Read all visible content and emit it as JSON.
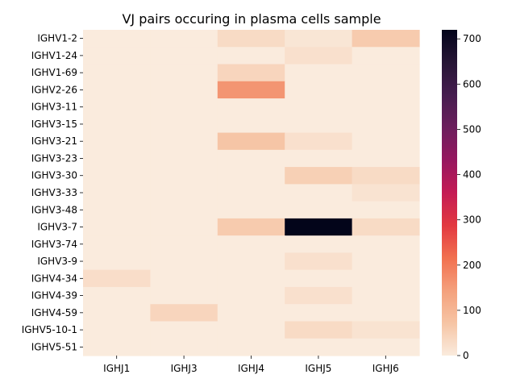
{
  "chart_data": {
    "type": "heatmap",
    "title": "VJ pairs occuring in plasma cells sample",
    "xlabel": "",
    "ylabel": "",
    "x_categories": [
      "IGHJ1",
      "IGHJ3",
      "IGHJ4",
      "IGHJ5",
      "IGHJ6"
    ],
    "y_categories": [
      "IGHV1-2",
      "IGHV1-24",
      "IGHV1-69",
      "IGHV2-26",
      "IGHV3-11",
      "IGHV3-15",
      "IGHV3-21",
      "IGHV3-23",
      "IGHV3-30",
      "IGHV3-33",
      "IGHV3-48",
      "IGHV3-7",
      "IGHV3-74",
      "IGHV3-9",
      "IGHV4-34",
      "IGHV4-39",
      "IGHV4-59",
      "IGHV5-10-1",
      "IGHV5-51"
    ],
    "values": [
      [
        0,
        0,
        30,
        10,
        60
      ],
      [
        0,
        0,
        0,
        20,
        0
      ],
      [
        0,
        0,
        40,
        0,
        0
      ],
      [
        0,
        0,
        160,
        0,
        0
      ],
      [
        0,
        0,
        0,
        0,
        0
      ],
      [
        0,
        0,
        0,
        0,
        0
      ],
      [
        0,
        0,
        70,
        20,
        0
      ],
      [
        0,
        0,
        0,
        0,
        0
      ],
      [
        0,
        0,
        0,
        50,
        30
      ],
      [
        0,
        0,
        0,
        0,
        15
      ],
      [
        0,
        0,
        0,
        0,
        0
      ],
      [
        0,
        0,
        60,
        720,
        30
      ],
      [
        0,
        0,
        0,
        0,
        0
      ],
      [
        0,
        0,
        0,
        20,
        0
      ],
      [
        25,
        0,
        0,
        0,
        0
      ],
      [
        0,
        0,
        0,
        20,
        0
      ],
      [
        0,
        40,
        0,
        0,
        0
      ],
      [
        0,
        0,
        0,
        30,
        15
      ],
      [
        0,
        0,
        0,
        0,
        0
      ]
    ],
    "colorbar": {
      "min": 0,
      "max": 720,
      "ticks": [
        0,
        100,
        200,
        300,
        400,
        500,
        600,
        700
      ],
      "colormap": "rocket_r"
    },
    "grid": false
  }
}
